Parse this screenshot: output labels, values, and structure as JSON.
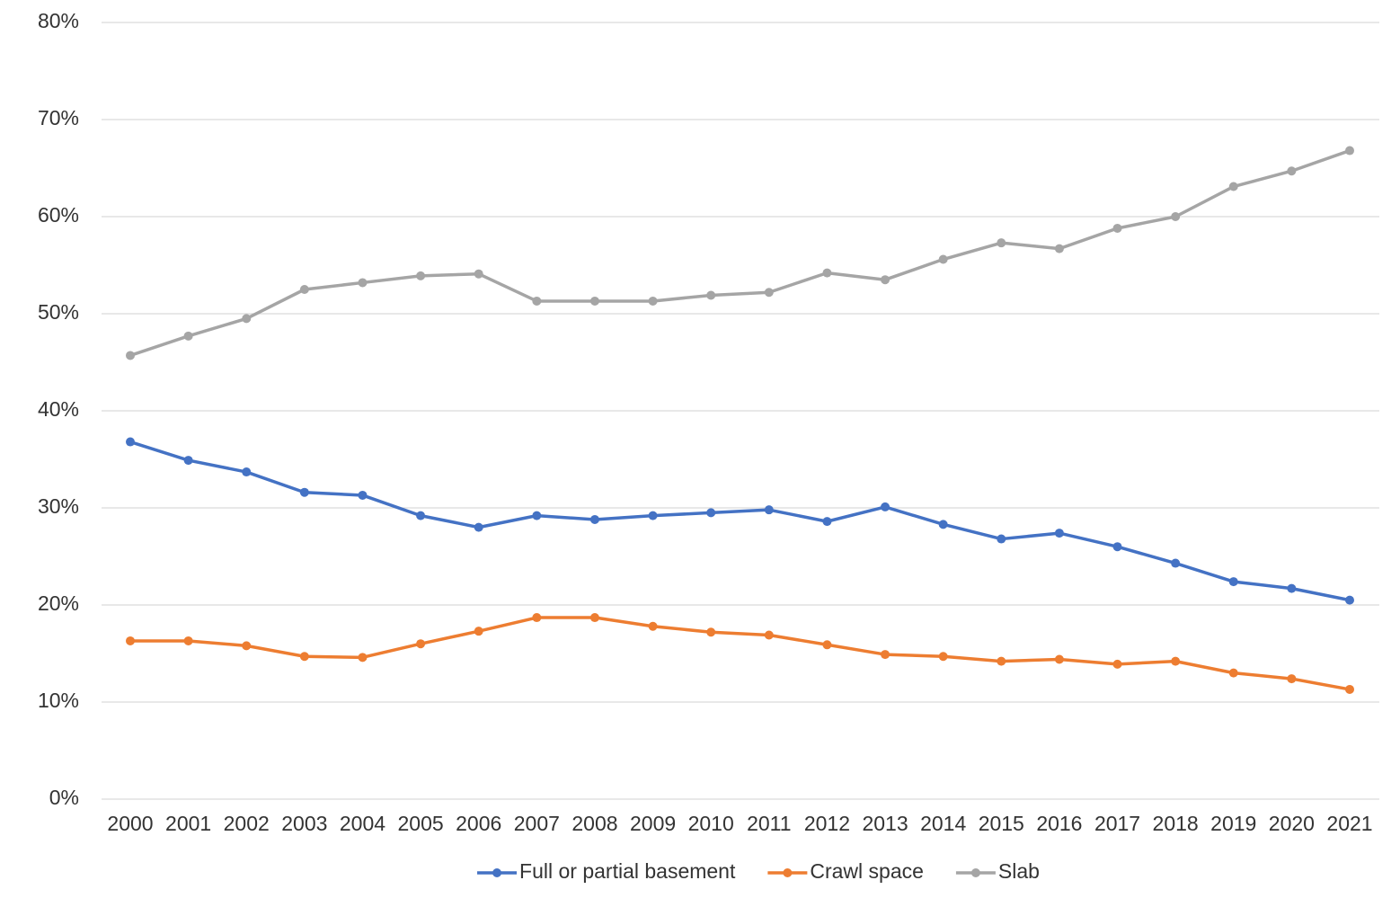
{
  "chart_data": {
    "type": "line",
    "categories": [
      "2000",
      "2001",
      "2002",
      "2003",
      "2004",
      "2005",
      "2006",
      "2007",
      "2008",
      "2009",
      "2010",
      "2011",
      "2012",
      "2013",
      "2014",
      "2015",
      "2016",
      "2017",
      "2018",
      "2019",
      "2020",
      "2021"
    ],
    "series": [
      {
        "name": "Full or partial basement",
        "color": "#4472c4",
        "values": [
          36.8,
          34.9,
          33.7,
          31.6,
          31.3,
          29.2,
          28.0,
          29.2,
          28.8,
          29.2,
          29.5,
          29.8,
          28.6,
          30.1,
          28.3,
          26.8,
          27.4,
          26.0,
          24.3,
          22.4,
          21.7,
          20.5
        ]
      },
      {
        "name": "Crawl space",
        "color": "#ed7d31",
        "values": [
          16.3,
          16.3,
          15.8,
          14.7,
          14.6,
          16.0,
          17.3,
          18.7,
          18.7,
          17.8,
          17.2,
          16.9,
          15.9,
          14.9,
          14.7,
          14.2,
          14.4,
          13.9,
          14.2,
          13.0,
          12.4,
          11.3
        ]
      },
      {
        "name": "Slab",
        "color": "#a5a5a5",
        "values": [
          45.7,
          47.7,
          49.5,
          52.5,
          53.2,
          53.9,
          54.1,
          51.3,
          51.3,
          51.3,
          51.9,
          52.2,
          54.2,
          53.5,
          55.6,
          57.3,
          56.7,
          58.8,
          60.0,
          63.1,
          64.7,
          66.8
        ]
      }
    ],
    "ylim": [
      0,
      80
    ],
    "yticks": [
      {
        "value": 0,
        "label": "0%"
      },
      {
        "value": 10,
        "label": "10%"
      },
      {
        "value": 20,
        "label": "20%"
      },
      {
        "value": 30,
        "label": "30%"
      },
      {
        "value": 40,
        "label": "40%"
      },
      {
        "value": 50,
        "label": "50%"
      },
      {
        "value": 60,
        "label": "60%"
      },
      {
        "value": 70,
        "label": "70%"
      },
      {
        "value": 80,
        "label": "80%"
      }
    ],
    "grid": true,
    "legend": "bottom"
  }
}
